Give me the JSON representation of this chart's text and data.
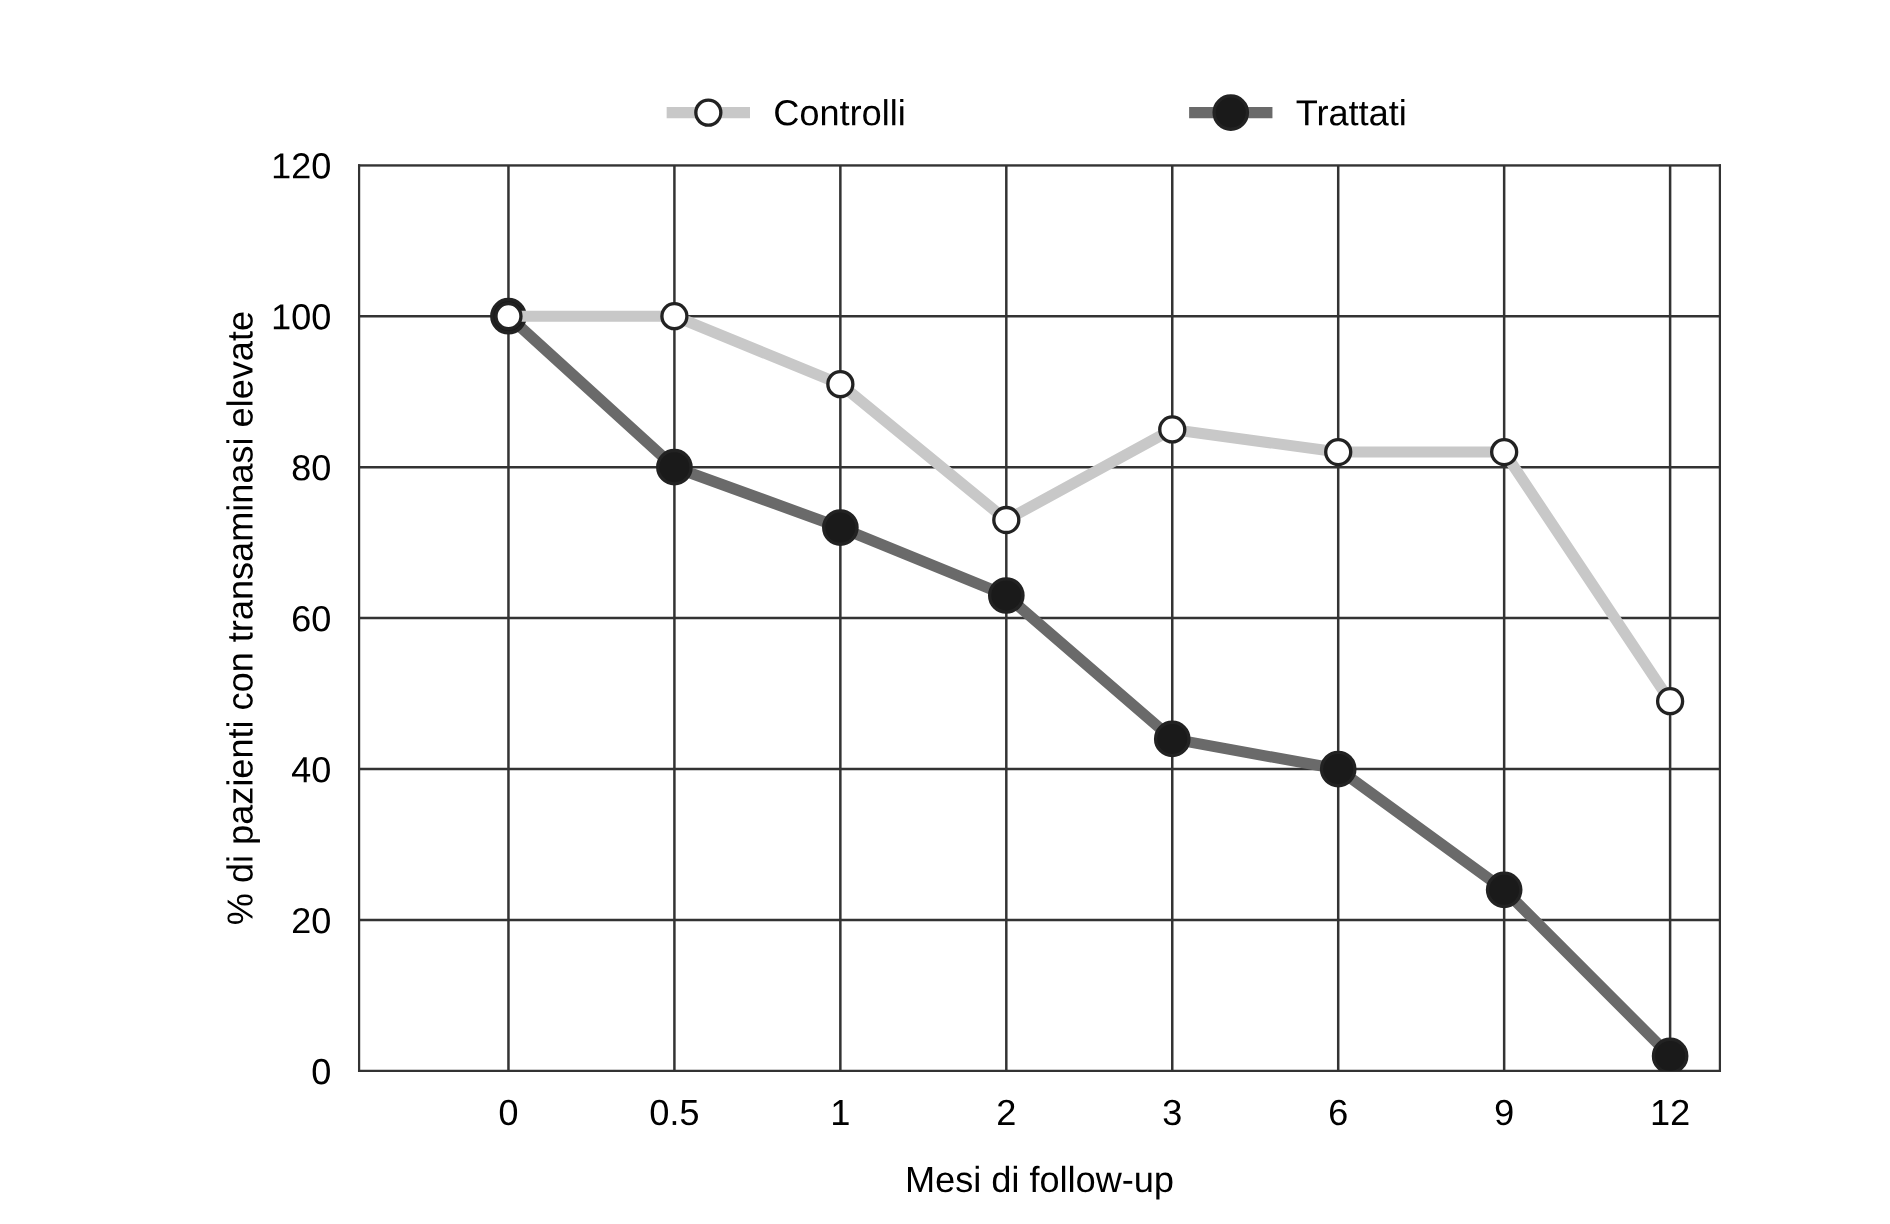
{
  "chart_data": {
    "type": "line",
    "xlabel": "Mesi di follow-up",
    "ylabel": "% di pazienti con transaminasi elevate",
    "categories": [
      "0",
      "0.5",
      "1",
      "2",
      "3",
      "6",
      "9",
      "12"
    ],
    "series": [
      {
        "name": "Controlli",
        "color": "#c8c8c8",
        "values": [
          100,
          100,
          91,
          73,
          85,
          82,
          82,
          49
        ]
      },
      {
        "name": "Trattati",
        "color": "#6a6a6a",
        "values": [
          100,
          80,
          72,
          63,
          44,
          40,
          24,
          2
        ]
      }
    ],
    "ylim": [
      0,
      120
    ],
    "yticks": [
      0,
      20,
      40,
      60,
      80,
      100,
      120
    ],
    "grid": true,
    "legend": "top",
    "marker": "circle",
    "line_style": "solid"
  }
}
